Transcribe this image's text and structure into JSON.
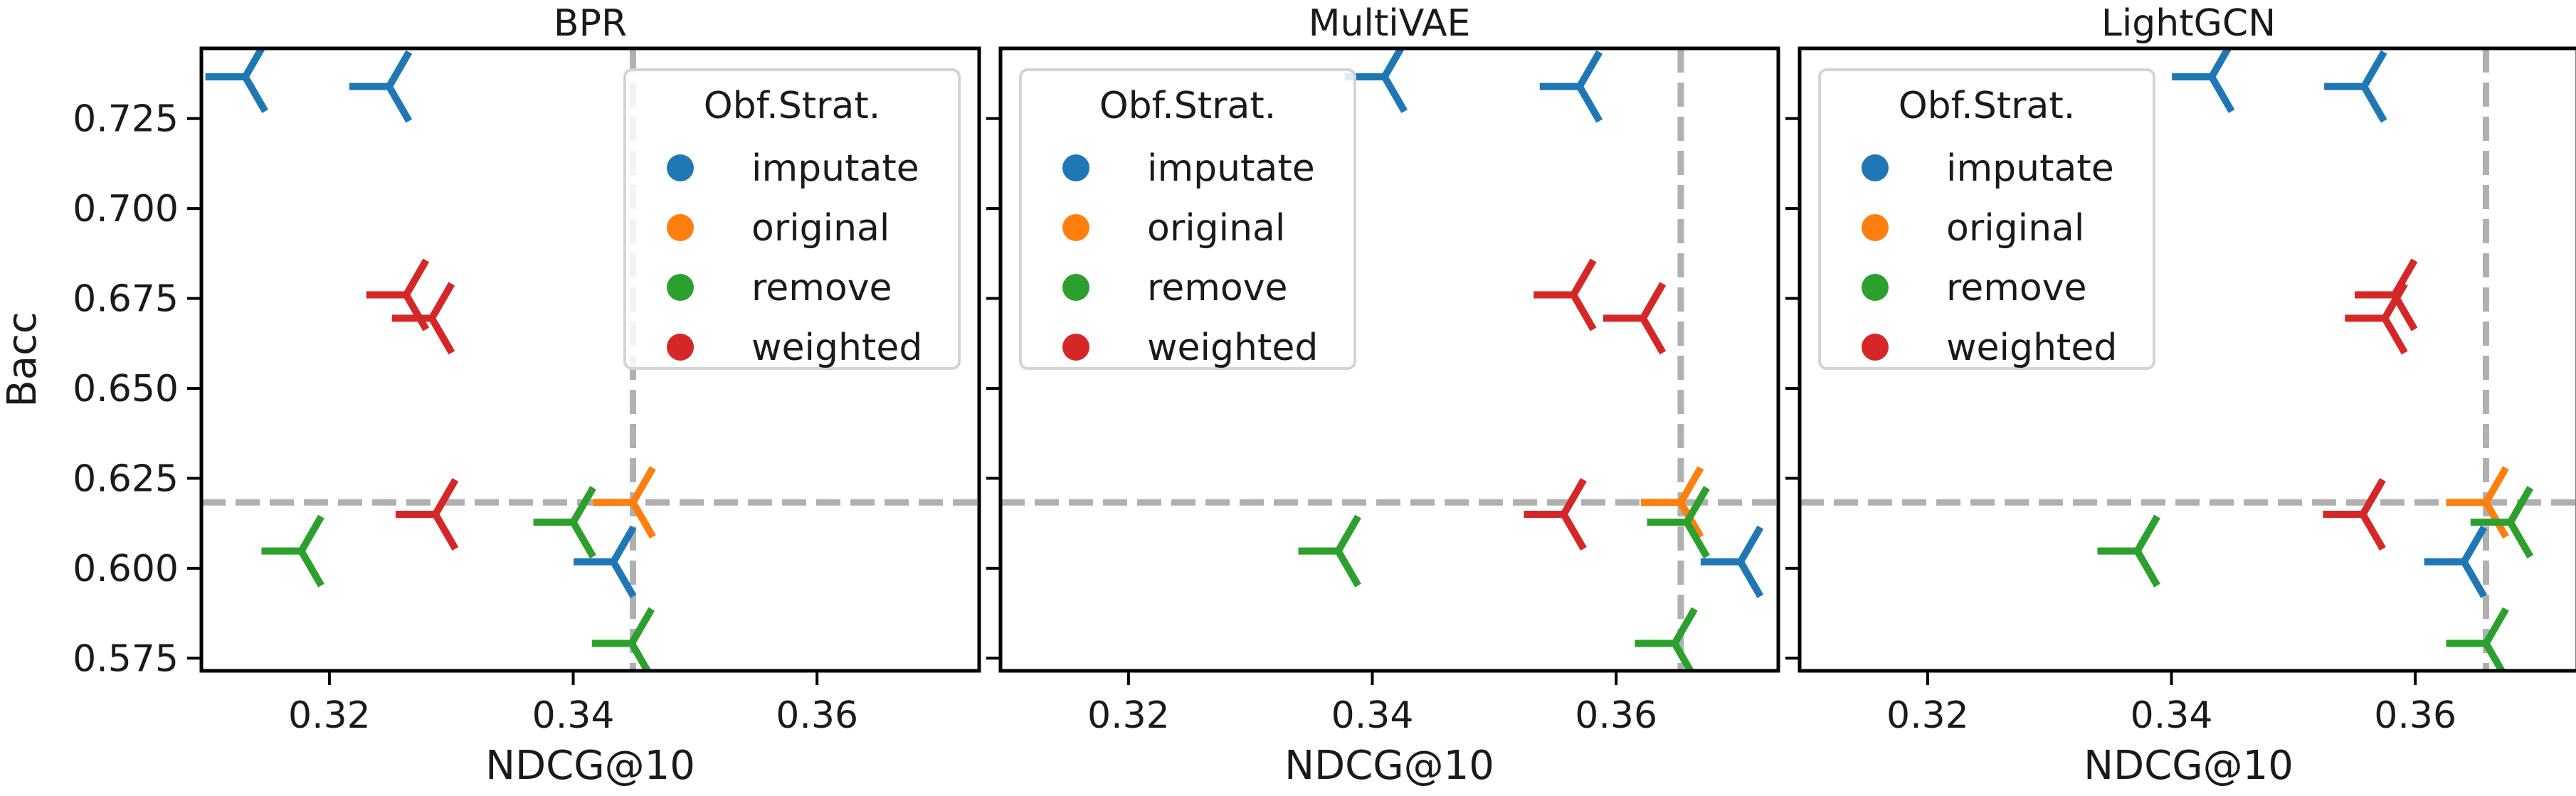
{
  "chart_data": [
    {
      "type": "scatter",
      "title": "BPR",
      "xlabel": "NDCG@10",
      "ylabel": "Bacc",
      "xlim": [
        0.3095,
        0.3733
      ],
      "ylim": [
        0.5715,
        0.7445
      ],
      "xticks": [
        "0.32",
        "0.34",
        "0.36"
      ],
      "yticks": [
        "0.575",
        "0.600",
        "0.625",
        "0.650",
        "0.675",
        "0.700",
        "0.725"
      ],
      "reference_lines": {
        "x": 0.3449,
        "y": 0.6183
      },
      "legend_title": "Obf.Strat.",
      "legend_position": "top-right",
      "series": [
        {
          "name": "imputate",
          "color": "#1f77b4",
          "points": [
            [
              0.3131,
              0.7366
            ],
            [
              0.3249,
              0.7339
            ],
            [
              0.3433,
              0.6018
            ]
          ]
        },
        {
          "name": "original",
          "color": "#ff7f0e",
          "points": [
            [
              0.3449,
              0.6183
            ]
          ]
        },
        {
          "name": "remove",
          "color": "#2ca02c",
          "points": [
            [
              0.3177,
              0.6048
            ],
            [
              0.34,
              0.6128
            ],
            [
              0.3448,
              0.5791
            ]
          ]
        },
        {
          "name": "weighted",
          "color": "#d62728",
          "points": [
            [
              0.3263,
              0.676
            ],
            [
              0.3284,
              0.6695
            ],
            [
              0.3287,
              0.615
            ]
          ]
        }
      ]
    },
    {
      "type": "scatter",
      "title": "MultiVAE",
      "xlabel": "NDCG@10",
      "ylabel": "",
      "xlim": [
        0.3095,
        0.3733
      ],
      "ylim": [
        0.5715,
        0.7445
      ],
      "xticks": [
        "0.32",
        "0.34",
        "0.36"
      ],
      "yticks": [
        "0.575",
        "0.600",
        "0.625",
        "0.650",
        "0.675",
        "0.700",
        "0.725"
      ],
      "reference_lines": {
        "x": 0.3653,
        "y": 0.6183
      },
      "legend_title": "Obf.Strat.",
      "legend_position": "top-left",
      "series": [
        {
          "name": "imputate",
          "color": "#1f77b4",
          "points": [
            [
              0.341,
              0.7366
            ],
            [
              0.357,
              0.7339
            ],
            [
              0.3702,
              0.6018
            ]
          ]
        },
        {
          "name": "original",
          "color": "#ff7f0e",
          "points": [
            [
              0.3653,
              0.6183
            ]
          ]
        },
        {
          "name": "remove",
          "color": "#2ca02c",
          "points": [
            [
              0.3372,
              0.6048
            ],
            [
              0.3658,
              0.6128
            ],
            [
              0.3648,
              0.5791
            ]
          ]
        },
        {
          "name": "weighted",
          "color": "#d62728",
          "points": [
            [
              0.3565,
              0.676
            ],
            [
              0.3622,
              0.6695
            ],
            [
              0.3557,
              0.615
            ]
          ]
        }
      ]
    },
    {
      "type": "scatter",
      "title": "LightGCN",
      "xlabel": "NDCG@10",
      "ylabel": "",
      "xlim": [
        0.3095,
        0.3733
      ],
      "ylim": [
        0.5715,
        0.7445
      ],
      "xticks": [
        "0.32",
        "0.34",
        "0.36"
      ],
      "yticks": [
        "0.575",
        "0.600",
        "0.625",
        "0.650",
        "0.675",
        "0.700",
        "0.725"
      ],
      "reference_lines": {
        "x": 0.3658,
        "y": 0.6183
      },
      "legend_title": "Obf.Strat.",
      "legend_position": "top-left",
      "series": [
        {
          "name": "imputate",
          "color": "#1f77b4",
          "points": [
            [
              0.3433,
              0.7366
            ],
            [
              0.3558,
              0.7339
            ],
            [
              0.364,
              0.6018
            ]
          ]
        },
        {
          "name": "original",
          "color": "#ff7f0e",
          "points": [
            [
              0.3658,
              0.6183
            ]
          ]
        },
        {
          "name": "remove",
          "color": "#2ca02c",
          "points": [
            [
              0.3372,
              0.6048
            ],
            [
              0.3678,
              0.6128
            ],
            [
              0.3658,
              0.5791
            ]
          ]
        },
        {
          "name": "weighted",
          "color": "#d62728",
          "points": [
            [
              0.3583,
              0.676
            ],
            [
              0.3575,
              0.6695
            ],
            [
              0.3557,
              0.615
            ]
          ]
        }
      ]
    }
  ]
}
